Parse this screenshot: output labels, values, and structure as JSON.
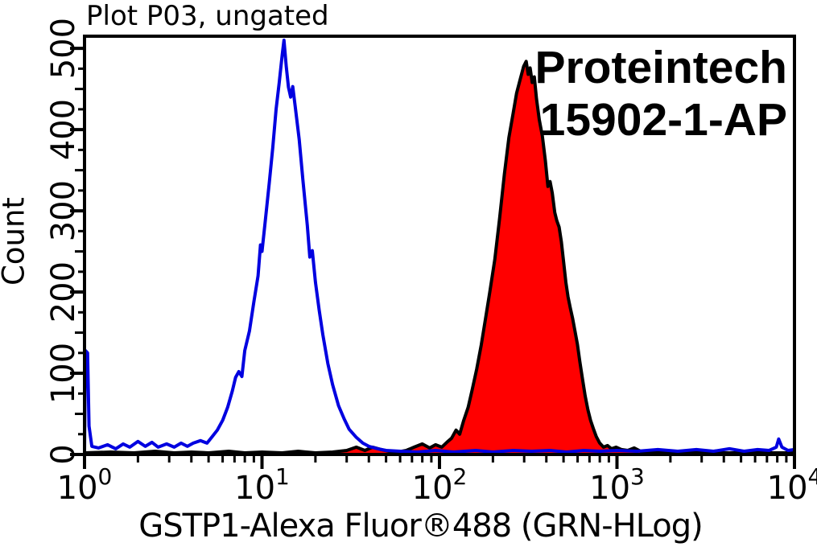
{
  "chart_data": {
    "type": "line",
    "title": "Plot P03, ungated",
    "xlabel": "GSTP1-Alexa Fluor®488 (GRN-HLog)",
    "ylabel": "Count",
    "annotations": {
      "brand": "Proteintech",
      "catalog": "15902-1-AP"
    },
    "x_scale": "log",
    "xlim": [
      1,
      10000
    ],
    "ylim": [
      0,
      515
    ],
    "xticks_exponents": [
      0,
      1,
      2,
      3,
      4
    ],
    "xtick_base": "10",
    "yticks": [
      0,
      100,
      200,
      300,
      400,
      500
    ],
    "grid": false,
    "legend": "none",
    "colors": {
      "axis": "#000000",
      "text": "#000000",
      "control_line": "#0000E0",
      "stain_fill": "#FF0000",
      "stain_outline": "#000000",
      "background": "#FFFFFF"
    },
    "series": [
      {
        "name": "control (blue, open)",
        "style": "open",
        "color": "#0000E0",
        "points": [
          [
            1.0,
            2
          ],
          [
            1.01,
            128
          ],
          [
            1.04,
            125
          ],
          [
            1.06,
            35
          ],
          [
            1.1,
            10
          ],
          [
            1.2,
            8
          ],
          [
            1.35,
            12
          ],
          [
            1.5,
            7
          ],
          [
            1.65,
            13
          ],
          [
            1.8,
            9
          ],
          [
            2.0,
            16
          ],
          [
            2.2,
            10
          ],
          [
            2.4,
            15
          ],
          [
            2.6,
            9
          ],
          [
            2.9,
            13
          ],
          [
            3.2,
            9
          ],
          [
            3.5,
            14
          ],
          [
            3.8,
            10
          ],
          [
            4.1,
            14
          ],
          [
            4.5,
            17
          ],
          [
            4.9,
            14
          ],
          [
            5.2,
            21
          ],
          [
            5.6,
            30
          ],
          [
            6.0,
            42
          ],
          [
            6.4,
            58
          ],
          [
            6.8,
            78
          ],
          [
            7.1,
            95
          ],
          [
            7.4,
            102
          ],
          [
            7.7,
            96
          ],
          [
            8.0,
            128
          ],
          [
            8.5,
            152
          ],
          [
            9.0,
            188
          ],
          [
            9.5,
            220
          ],
          [
            9.8,
            258
          ],
          [
            10.0,
            250
          ],
          [
            10.4,
            285
          ],
          [
            11.0,
            335
          ],
          [
            11.5,
            378
          ],
          [
            12.0,
            425
          ],
          [
            12.5,
            458
          ],
          [
            13.0,
            492
          ],
          [
            13.3,
            510
          ],
          [
            13.7,
            478
          ],
          [
            14.1,
            452
          ],
          [
            14.5,
            440
          ],
          [
            14.9,
            453
          ],
          [
            15.4,
            428
          ],
          [
            16.2,
            388
          ],
          [
            17.0,
            338
          ],
          [
            18.0,
            282
          ],
          [
            18.6,
            243
          ],
          [
            19.2,
            251
          ],
          [
            20.0,
            212
          ],
          [
            21.0,
            178
          ],
          [
            22.0,
            148
          ],
          [
            23.5,
            112
          ],
          [
            25.0,
            86
          ],
          [
            27.0,
            60
          ],
          [
            29.0,
            44
          ],
          [
            31.0,
            31
          ],
          [
            34.0,
            21
          ],
          [
            37.0,
            14
          ],
          [
            40.0,
            10
          ],
          [
            45.0,
            7
          ],
          [
            50.0,
            5
          ],
          [
            60,
            4
          ],
          [
            75,
            3
          ],
          [
            95,
            5
          ],
          [
            120,
            3
          ],
          [
            160,
            5
          ],
          [
            200,
            3
          ],
          [
            260,
            5
          ],
          [
            330,
            4
          ],
          [
            420,
            5
          ],
          [
            520,
            3
          ],
          [
            650,
            5
          ],
          [
            800,
            4
          ],
          [
            1000,
            5
          ],
          [
            1300,
            4
          ],
          [
            1700,
            6
          ],
          [
            2200,
            4
          ],
          [
            2800,
            6
          ],
          [
            3500,
            4
          ],
          [
            4300,
            7
          ],
          [
            5200,
            4
          ],
          [
            6200,
            6
          ],
          [
            7200,
            5
          ],
          [
            7900,
            9
          ],
          [
            8150,
            19
          ],
          [
            8500,
            9
          ],
          [
            9200,
            5
          ],
          [
            10000,
            6
          ]
        ]
      },
      {
        "name": "GSTP1 stained (red, filled)",
        "style": "filled",
        "color": "#000000",
        "fill": "#FF0000",
        "points": [
          [
            1.0,
            2
          ],
          [
            1.4,
            3
          ],
          [
            1.9,
            2
          ],
          [
            2.5,
            4
          ],
          [
            3.2,
            2
          ],
          [
            4.0,
            3
          ],
          [
            5.0,
            2
          ],
          [
            6.5,
            4
          ],
          [
            8.0,
            2
          ],
          [
            10,
            3
          ],
          [
            13,
            2
          ],
          [
            16,
            4
          ],
          [
            20,
            2
          ],
          [
            25,
            3
          ],
          [
            30,
            5
          ],
          [
            34,
            9
          ],
          [
            38,
            5
          ],
          [
            42,
            9
          ],
          [
            47,
            6
          ],
          [
            52,
            4
          ],
          [
            58,
            3
          ],
          [
            65,
            5
          ],
          [
            72,
            9
          ],
          [
            80,
            13
          ],
          [
            88,
            8
          ],
          [
            95,
            12
          ],
          [
            103,
            9
          ],
          [
            110,
            15
          ],
          [
            117,
            20
          ],
          [
            124,
            30
          ],
          [
            130,
            25
          ],
          [
            137,
            42
          ],
          [
            145,
            58
          ],
          [
            153,
            80
          ],
          [
            162,
            105
          ],
          [
            172,
            135
          ],
          [
            182,
            168
          ],
          [
            192,
            200
          ],
          [
            205,
            240
          ],
          [
            218,
            290
          ],
          [
            232,
            345
          ],
          [
            246,
            390
          ],
          [
            260,
            420
          ],
          [
            272,
            445
          ],
          [
            285,
            462
          ],
          [
            298,
            478
          ],
          [
            308,
            484
          ],
          [
            316,
            468
          ],
          [
            324,
            476
          ],
          [
            333,
            458
          ],
          [
            342,
            465
          ],
          [
            352,
            438
          ],
          [
            365,
            412
          ],
          [
            380,
            392
          ],
          [
            395,
            362
          ],
          [
            408,
            330
          ],
          [
            420,
            336
          ],
          [
            432,
            322
          ],
          [
            446,
            298
          ],
          [
            458,
            288
          ],
          [
            472,
            280
          ],
          [
            486,
            262
          ],
          [
            500,
            238
          ],
          [
            515,
            212
          ],
          [
            530,
            194
          ],
          [
            546,
            180
          ],
          [
            562,
            168
          ],
          [
            580,
            152
          ],
          [
            598,
            136
          ],
          [
            618,
            114
          ],
          [
            640,
            92
          ],
          [
            662,
            72
          ],
          [
            686,
            55
          ],
          [
            710,
            42
          ],
          [
            736,
            32
          ],
          [
            765,
            22
          ],
          [
            800,
            14
          ],
          [
            840,
            9
          ],
          [
            885,
            11
          ],
          [
            930,
            7
          ],
          [
            990,
            9
          ],
          [
            1060,
            6
          ],
          [
            1150,
            5
          ],
          [
            1250,
            8
          ],
          [
            1360,
            4
          ],
          [
            1500,
            2
          ],
          [
            1800,
            2
          ],
          [
            2300,
            2
          ],
          [
            3000,
            2
          ],
          [
            4000,
            2
          ],
          [
            5500,
            2
          ],
          [
            7500,
            2
          ],
          [
            10000,
            2
          ]
        ]
      }
    ]
  }
}
